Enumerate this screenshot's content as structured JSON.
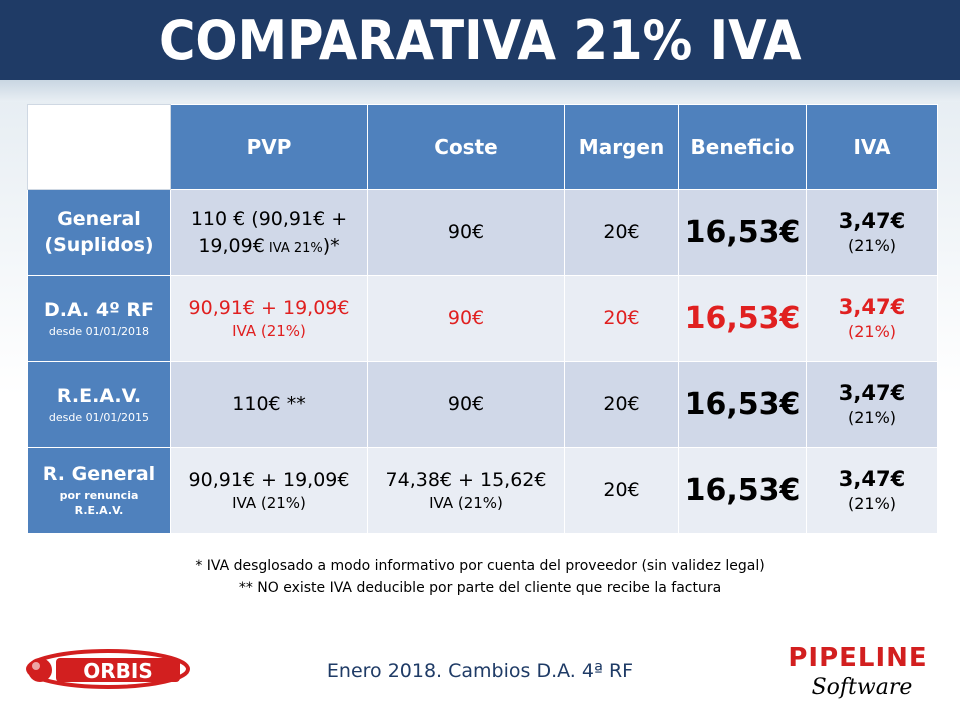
{
  "title": "COMPARATIVA 21% IVA",
  "table": {
    "headers": [
      "PVP",
      "Coste",
      "Margen",
      "Beneficio",
      "IVA"
    ],
    "rows": [
      {
        "label": "General",
        "label2": "(Suplidos)",
        "sublabel": "",
        "pvp": "110 € (90,91€ +",
        "pvp2": "19,09€",
        "pvp2_small": " IVA 21%",
        "pvp2_end": ")*",
        "coste": "90€",
        "coste2": "",
        "margen": "20€",
        "beneficio": "16,53€",
        "iva": "3,47€",
        "iva_pct": "(21%)"
      },
      {
        "label": "D.A. 4º RF",
        "label2": "",
        "sublabel": "desde 01/01/2018",
        "pvp": "90,91€ + 19,09€",
        "pvp_sub": "IVA (21%)",
        "coste": "90€",
        "margen": "20€",
        "beneficio": "16,53€",
        "iva": "3,47€",
        "iva_pct": "(21%)"
      },
      {
        "label": "R.E.A.V.",
        "label2": "",
        "sublabel": "desde 01/01/2015",
        "pvp": "110€ **",
        "coste": "90€",
        "margen": "20€",
        "beneficio": "16,53€",
        "iva": "3,47€",
        "iva_pct": "(21%)"
      },
      {
        "label": "R. General",
        "sublabel": "por renuncia",
        "sublabel2": "R.E.A.V.",
        "pvp": "90,91€ + 19,09€",
        "pvp_sub": "IVA (21%)",
        "coste": "74,38€ + 15,62€",
        "coste_sub": "IVA (21%)",
        "margen": "20€",
        "beneficio": "16,53€",
        "iva": "3,47€",
        "iva_pct": "(21%)"
      }
    ]
  },
  "notes": [
    "* IVA desglosado a modo informativo por cuenta del proveedor (sin validez legal)",
    "** NO existe IVA deducible por parte del cliente que recibe la factura"
  ],
  "footer": "Enero 2018. Cambios D.A. 4ª RF",
  "logos": {
    "left": "ORBIS",
    "right": "PIPELINE",
    "right_sub": "Software"
  },
  "colors": {
    "header_bg": "#1f3b66",
    "table_header": "#4f81bd",
    "row_odd": "#d0d8e8",
    "row_even": "#e9edf4",
    "highlight_red": "#e02020"
  }
}
